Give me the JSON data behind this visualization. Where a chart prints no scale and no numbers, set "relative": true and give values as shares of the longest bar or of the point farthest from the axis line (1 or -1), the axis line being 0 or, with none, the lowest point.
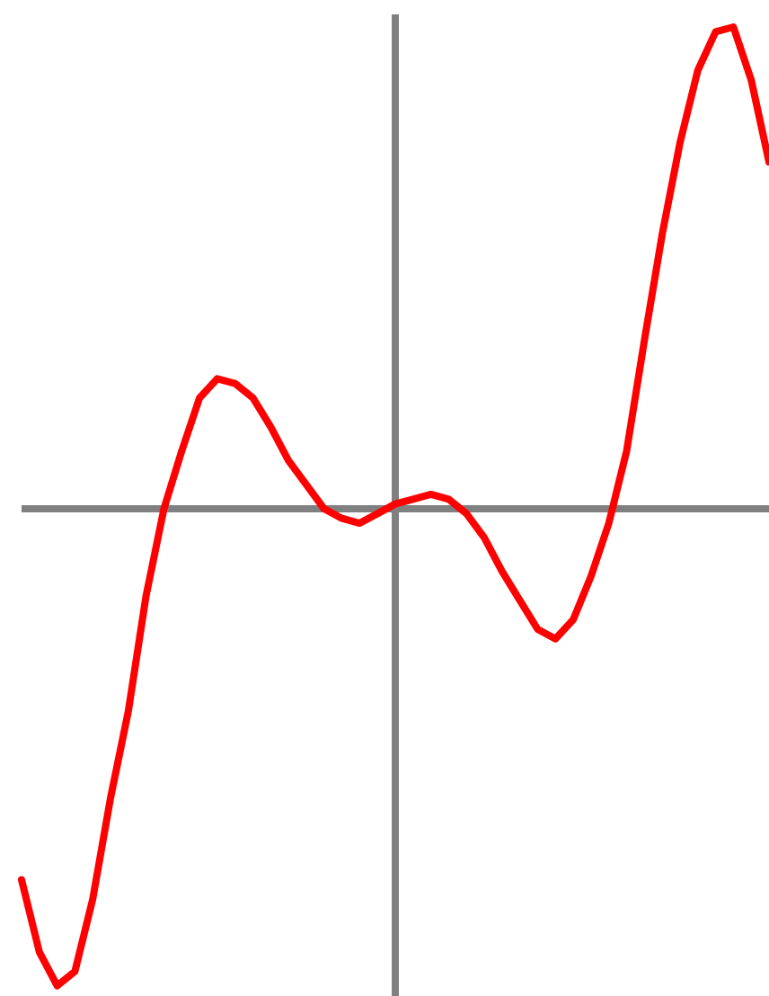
{
  "chart_data": {
    "type": "line",
    "relative": true,
    "marker": "none",
    "line_style": "solid",
    "categories": [
      null,
      null,
      null,
      null,
      null,
      null,
      null,
      null,
      null,
      null,
      null,
      null,
      null,
      null,
      null,
      null,
      null,
      null,
      null,
      null,
      null,
      null,
      null,
      null,
      null,
      null,
      null,
      null,
      null,
      null,
      null,
      null,
      null,
      null,
      null,
      null,
      null,
      null,
      null,
      null,
      null,
      null,
      null
    ],
    "series": [
      {
        "color": "#ff0000",
        "values": [
          -0.77,
          -0.92,
          -0.99,
          -0.96,
          -0.81,
          -0.6,
          -0.42,
          -0.18,
          0,
          0.12,
          0.23,
          0.27,
          0.26,
          0.23,
          0.17,
          0.1,
          0.05,
          0,
          -0.02,
          -0.03,
          -0.01,
          0.01,
          0.02,
          0.03,
          0.02,
          -0.01,
          -0.06,
          -0.13,
          -0.19,
          -0.25,
          -0.27,
          -0.23,
          -0.14,
          -0.03,
          0.12,
          0.35,
          0.57,
          0.76,
          0.91,
          0.99,
          1,
          0.89,
          0.72
        ]
      }
    ]
  }
}
